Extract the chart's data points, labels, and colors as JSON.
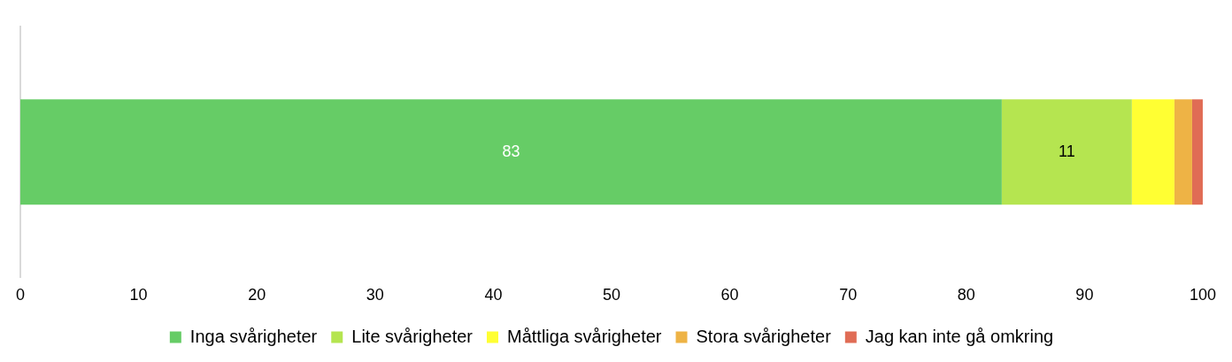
{
  "chart_data": {
    "type": "bar",
    "orientation": "horizontal",
    "stacked": true,
    "categories": [
      null
    ],
    "series": [
      {
        "name": "Inga svårigheter",
        "color": "#66cc66",
        "values": [
          83
        ],
        "value_labels": [
          "83"
        ]
      },
      {
        "name": "Lite svårigheter",
        "color": "#b5e550",
        "values": [
          11
        ],
        "value_labels": [
          "11"
        ]
      },
      {
        "name": "Måttliga svårigheter",
        "color": "#ffff33",
        "values": [
          3.6
        ]
      },
      {
        "name": "Stora svårigheter",
        "color": "#eeb345",
        "values": [
          1.5
        ]
      },
      {
        "name": "Jag kan inte gå omkring",
        "color": "#e06c55",
        "values": [
          0.9
        ]
      }
    ],
    "xlim": [
      0,
      100
    ],
    "xticks": [
      0,
      10,
      20,
      30,
      40,
      50,
      60,
      70,
      80,
      90,
      100
    ],
    "grid": false,
    "legend": "bottom"
  }
}
